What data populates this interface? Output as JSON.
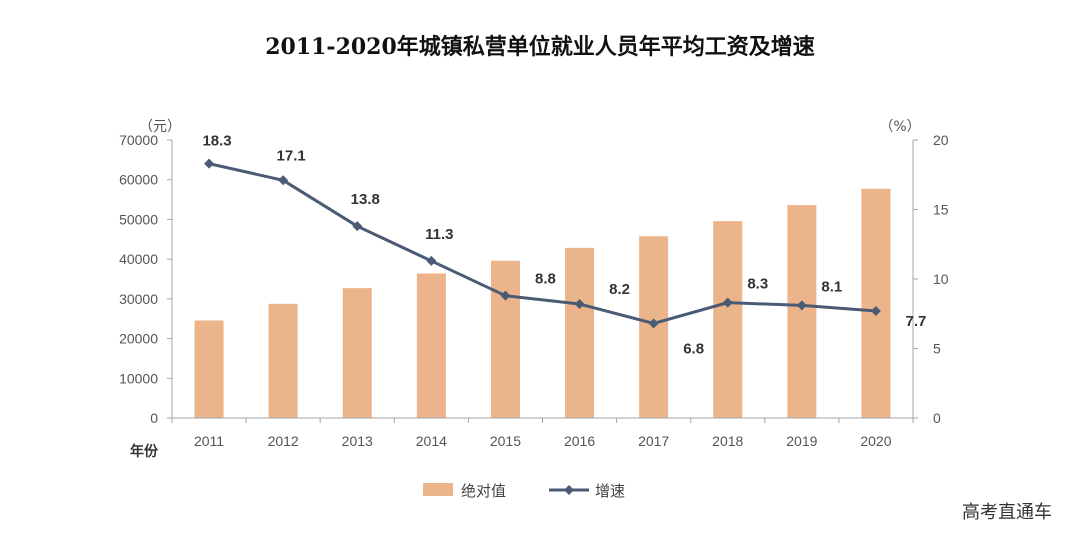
{
  "watermark": "高考直通车",
  "chart_data": {
    "type": "bar",
    "title": "2011-2020年城镇私营单位就业人员年平均工资及增速",
    "xlabel": "年份",
    "categories": [
      "2011",
      "2012",
      "2013",
      "2014",
      "2015",
      "2016",
      "2017",
      "2018",
      "2019",
      "2020"
    ],
    "left_axis": {
      "unit": "（元）",
      "ylim": [
        0,
        70000
      ],
      "ticks": [
        "0",
        "10000",
        "20000",
        "30000",
        "40000",
        "50000",
        "60000",
        "70000"
      ]
    },
    "right_axis": {
      "unit": "（%）",
      "ylim": [
        0,
        20
      ],
      "ticks": [
        "0",
        "5",
        "10",
        "15",
        "20"
      ]
    },
    "series": [
      {
        "name": "绝对值",
        "type": "bar",
        "axis": "left",
        "color": "#ECB48A",
        "values": [
          24556,
          28752,
          32706,
          36390,
          39589,
          42833,
          45761,
          49575,
          53604,
          57727
        ]
      },
      {
        "name": "增速",
        "type": "line",
        "axis": "right",
        "color": "#4B5A75",
        "values": [
          18.3,
          17.1,
          13.8,
          11.3,
          8.8,
          8.2,
          6.8,
          8.3,
          8.1,
          7.7
        ],
        "labels": [
          "18.3",
          "17.1",
          "13.8",
          "11.3",
          "8.8",
          "8.2",
          "6.8",
          "8.3",
          "8.1",
          "7.7"
        ]
      }
    ],
    "grid": false,
    "legend": "bottom"
  }
}
